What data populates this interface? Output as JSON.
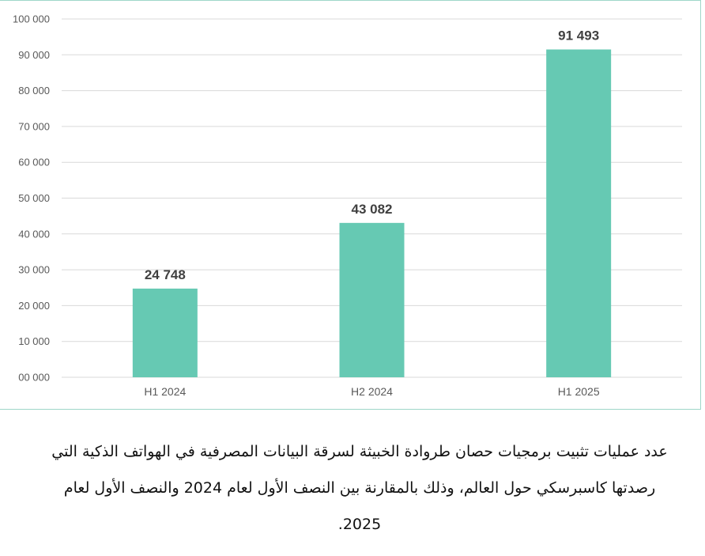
{
  "chart_data": {
    "type": "bar",
    "categories": [
      "H1 2024",
      "H2 2024",
      "H1 2025"
    ],
    "values": [
      24748,
      43082,
      91493
    ],
    "data_labels": [
      "24 748",
      "43 082",
      "91 493"
    ],
    "y_tick_labels": [
      "00 000",
      "10 000",
      "20 000",
      "30 000",
      "40 000",
      "50 000",
      "60 000",
      "70 000",
      "80 000",
      "90 000",
      "100 000"
    ],
    "ylim": [
      0,
      100000
    ],
    "grid": true,
    "bar_color": "#66c9b3"
  },
  "caption": {
    "line1": "عدد عمليات تثبيت برمجيات حصان طروادة الخبيثة لسرقة البيانات المصرفية في الهواتف الذكية التي",
    "line2": "رصدتها كاسبرسكي حول العالم، وذلك بالمقارنة بين النصف الأول لعام 2024 والنصف الأول لعام",
    "line3": "2025."
  }
}
